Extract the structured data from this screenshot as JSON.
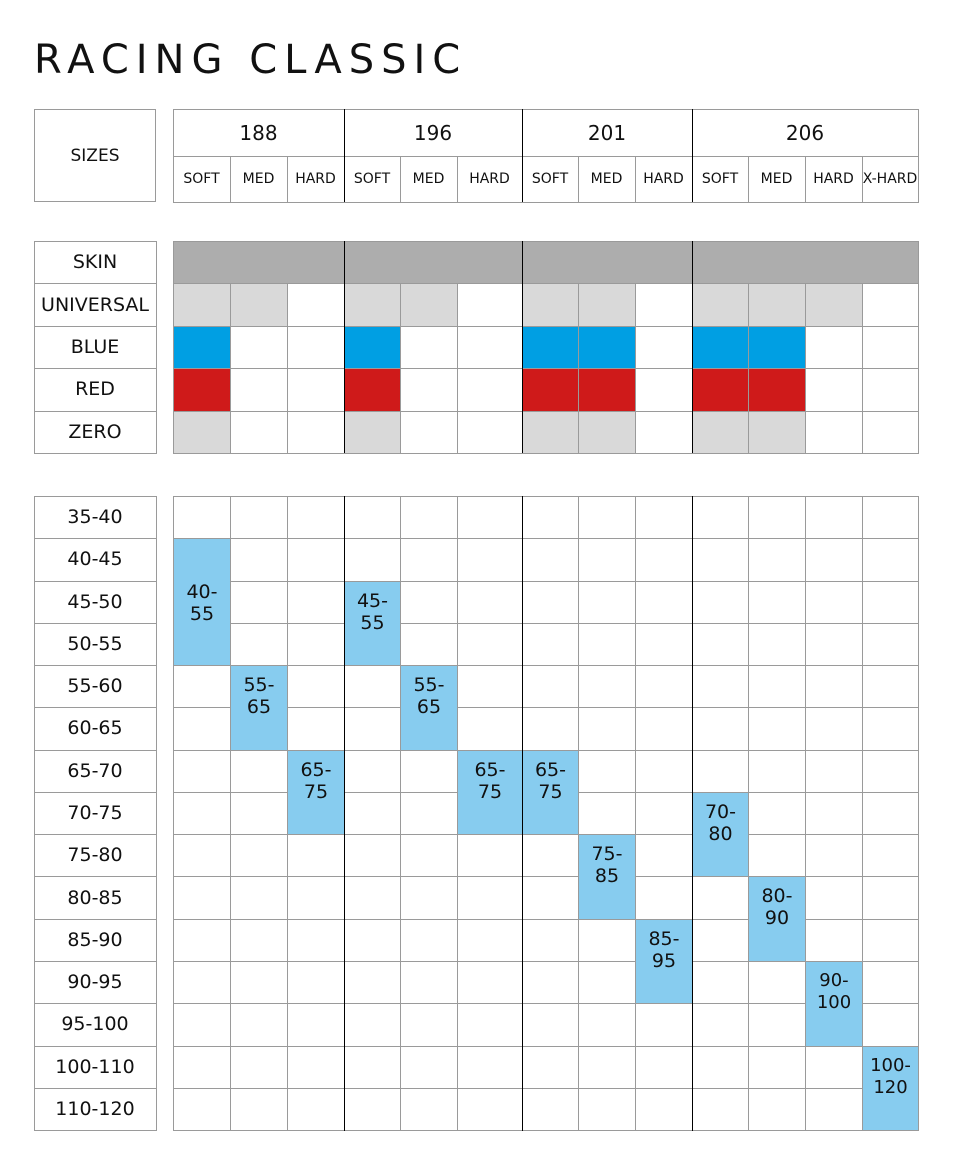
{
  "title": "RACING CLASSIC",
  "sizes_label": "SIZES",
  "groups": [
    {
      "size": "188",
      "cols": [
        "SOFT",
        "MED",
        "HARD"
      ]
    },
    {
      "size": "196",
      "cols": [
        "SOFT",
        "MED",
        "HARD"
      ]
    },
    {
      "size": "201",
      "cols": [
        "SOFT",
        "MED",
        "HARD"
      ]
    },
    {
      "size": "206",
      "cols": [
        "SOFT",
        "MED",
        "HARD",
        "X-HARD"
      ]
    }
  ],
  "colors": {
    "skin": "#adadad",
    "universal": "#d9d9d9",
    "blue": "#009fe3",
    "red": "#cf1a1a",
    "zero": "#d9d9d9",
    "weight_cell": "#87ccef",
    "border": "#9a9a9a",
    "group_divider": "#000000"
  },
  "wax_rows": [
    {
      "label": "SKIN",
      "color_key": "skin",
      "filled": [
        1,
        1,
        1,
        1,
        1,
        1,
        1,
        1,
        1,
        1,
        1,
        1,
        1
      ]
    },
    {
      "label": "UNIVERSAL",
      "color_key": "universal",
      "filled": [
        1,
        1,
        0,
        1,
        1,
        0,
        1,
        1,
        0,
        1,
        1,
        1,
        0
      ]
    },
    {
      "label": "BLUE",
      "color_key": "blue",
      "filled": [
        1,
        0,
        0,
        1,
        0,
        0,
        1,
        1,
        0,
        1,
        1,
        0,
        0
      ]
    },
    {
      "label": "RED",
      "color_key": "red",
      "filled": [
        1,
        0,
        0,
        1,
        0,
        0,
        1,
        1,
        0,
        1,
        1,
        0,
        0
      ]
    },
    {
      "label": "ZERO",
      "color_key": "zero",
      "filled": [
        1,
        0,
        0,
        1,
        0,
        0,
        1,
        1,
        0,
        1,
        1,
        0,
        0
      ]
    }
  ],
  "weight_rows": [
    "35-40",
    "40-45",
    "45-50",
    "50-55",
    "55-60",
    "60-65",
    "65-70",
    "70-75",
    "75-80",
    "80-85",
    "85-90",
    "90-95",
    "95-100",
    "100-110",
    "110-120"
  ],
  "weight_ranges": [
    {
      "col": 0,
      "row_start": 1,
      "row_span": 3,
      "label": "40-\n55"
    },
    {
      "col": 1,
      "row_start": 4,
      "row_span": 2,
      "label": "55-\n65"
    },
    {
      "col": 2,
      "row_start": 6,
      "row_span": 2,
      "label": "65-\n75"
    },
    {
      "col": 3,
      "row_start": 2,
      "row_span": 2,
      "label": "45-\n55"
    },
    {
      "col": 4,
      "row_start": 4,
      "row_span": 2,
      "label": "55-\n65"
    },
    {
      "col": 5,
      "row_start": 6,
      "row_span": 2,
      "label": "65-\n75"
    },
    {
      "col": 6,
      "row_start": 6,
      "row_span": 2,
      "label": "65-\n75"
    },
    {
      "col": 7,
      "row_start": 8,
      "row_span": 2,
      "label": "75-\n85"
    },
    {
      "col": 8,
      "row_start": 10,
      "row_span": 2,
      "label": "85-\n95"
    },
    {
      "col": 9,
      "row_start": 7,
      "row_span": 2,
      "label": "70-\n80"
    },
    {
      "col": 10,
      "row_start": 9,
      "row_span": 2,
      "label": "80-\n90"
    },
    {
      "col": 11,
      "row_start": 11,
      "row_span": 2,
      "label": "90-\n100"
    },
    {
      "col": 12,
      "row_start": 13,
      "row_span": 2,
      "label": "100-\n120"
    }
  ]
}
